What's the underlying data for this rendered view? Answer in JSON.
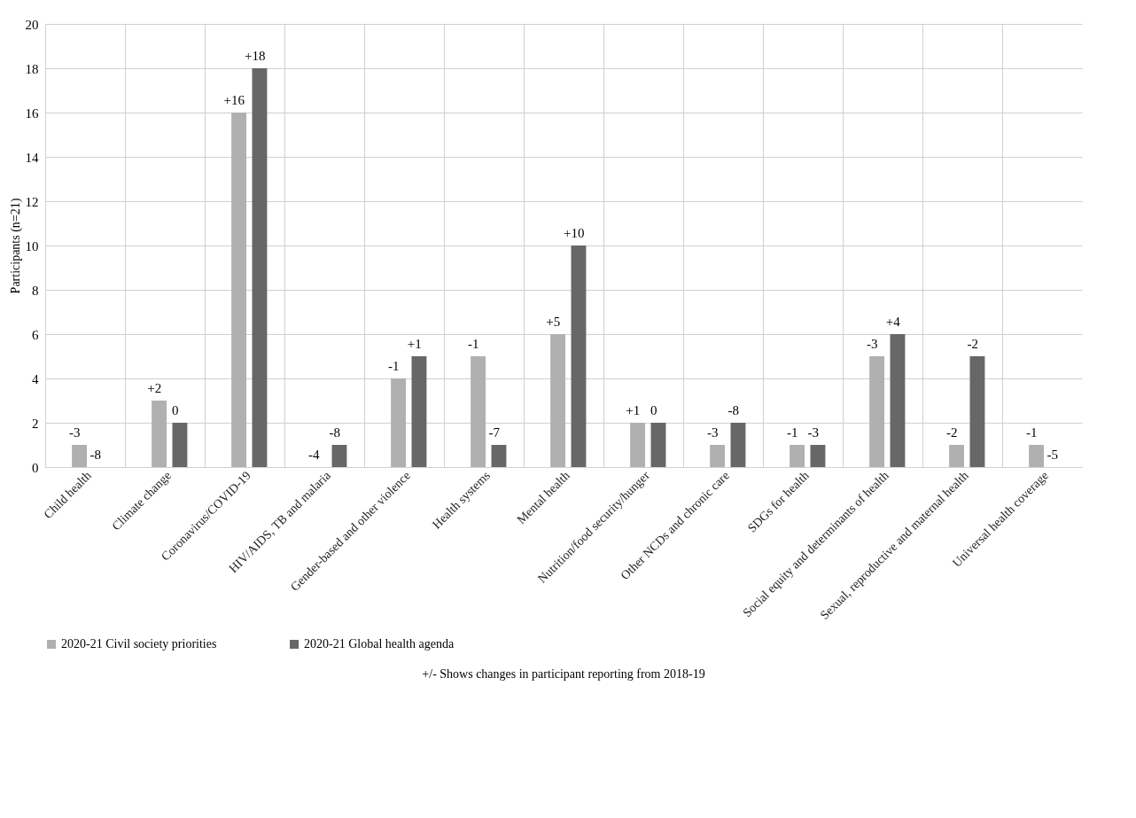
{
  "chart_data": {
    "type": "bar",
    "ylabel": "Participants (n=21)",
    "categories": [
      "Child health",
      "Climate change",
      "Coronavirus/COVID-19",
      "HIV/AIDS, TB and malaria",
      "Gender-based and other violence",
      "Health systems",
      "Mental health",
      "Nutrition/food security/hunger",
      "Other NCDs and chronic care",
      "SDGs for health",
      "Social equity and determinants of health",
      "Sexual, reproductive and maternal health",
      "Universal health coverage"
    ],
    "series": [
      {
        "name": "2020-21 Civil society priorities",
        "color": "#b0b0b0",
        "values": [
          1,
          3,
          16,
          0,
          4,
          5,
          6,
          2,
          1,
          1,
          5,
          1,
          1
        ]
      },
      {
        "name": "2020-21 Global health agenda",
        "color": "#676767",
        "values": [
          0,
          2,
          18,
          1,
          5,
          1,
          10,
          2,
          2,
          1,
          6,
          5,
          0
        ]
      }
    ],
    "ylim": [
      0,
      20
    ],
    "yticks": [
      0,
      2,
      4,
      6,
      8,
      10,
      12,
      14,
      16,
      18,
      20
    ],
    "grid": true,
    "legend": "bottom",
    "annotations": [
      "+/- Shows changes in participant reporting from 2018-19",
      {
        "text": "-3",
        "x": "Child health",
        "y": 1
      },
      {
        "text": "-8",
        "x": "Child health",
        "y": 0
      },
      {
        "text": "+2",
        "x": "Climate change",
        "y": 3
      },
      {
        "text": "0",
        "x": "Climate change",
        "y": 2
      },
      {
        "text": "+16",
        "x": "Coronavirus/COVID-19",
        "y": 16
      },
      {
        "text": "+18",
        "x": "Coronavirus/COVID-19",
        "y": 18
      },
      {
        "text": "-4",
        "x": "HIV/AIDS, TB and malaria",
        "y": 0
      },
      {
        "text": "-8",
        "x": "HIV/AIDS, TB and malaria",
        "y": 1
      },
      {
        "text": "-1",
        "x": "Gender-based and other violence",
        "y": 4
      },
      {
        "text": "+1",
        "x": "Gender-based and other violence",
        "y": 5
      },
      {
        "text": "-1",
        "x": "Health systems",
        "y": 5
      },
      {
        "text": "-7",
        "x": "Health systems",
        "y": 1
      },
      {
        "text": "+5",
        "x": "Mental health",
        "y": 6
      },
      {
        "text": "+10",
        "x": "Mental health",
        "y": 10
      },
      {
        "text": "+1",
        "x": "Nutrition/food security/hunger",
        "y": 2
      },
      {
        "text": "0",
        "x": "Nutrition/food security/hunger",
        "y": 2
      },
      {
        "text": "-3",
        "x": "Other NCDs and chronic care",
        "y": 1
      },
      {
        "text": "-8",
        "x": "Other NCDs and chronic care",
        "y": 2
      },
      {
        "text": "-1",
        "x": "SDGs for health",
        "y": 1
      },
      {
        "text": "-3",
        "x": "SDGs for health",
        "y": 1
      },
      {
        "text": "-3",
        "x": "Social equity and determinants of health",
        "y": 5
      },
      {
        "text": "+4",
        "x": "Social equity and determinants of health",
        "y": 6
      },
      {
        "text": "-2",
        "x": "Sexual, reproductive and maternal health",
        "y": 1
      },
      {
        "text": "-2",
        "x": "Sexual, reproductive and maternal health",
        "y": 5
      },
      {
        "text": "-1",
        "x": "Universal health coverage",
        "y": 1
      },
      {
        "text": "-5",
        "x": "Universal health coverage",
        "y": 0
      }
    ]
  }
}
